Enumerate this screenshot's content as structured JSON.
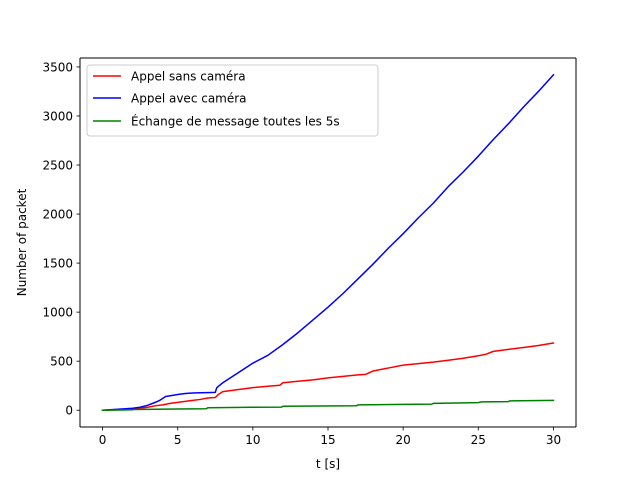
{
  "chart_data": {
    "type": "line",
    "title": "",
    "xlabel": "t [s]",
    "ylabel": "Number of packet",
    "xlim": [
      -1.5,
      31.5
    ],
    "ylim": [
      -171,
      3591
    ],
    "xticks": [
      0,
      5,
      10,
      15,
      20,
      25,
      30
    ],
    "yticks": [
      0,
      500,
      1000,
      1500,
      2000,
      2500,
      3000,
      3500
    ],
    "grid": false,
    "legend_position": "top-left",
    "series": [
      {
        "name": "Appel sans caméra",
        "color": "#ff0000",
        "x": [
          0,
          1,
          2,
          2.5,
          3,
          3.5,
          4,
          4.5,
          5,
          5.5,
          6,
          6.5,
          7,
          7.5,
          7.7,
          8,
          9,
          10,
          11,
          11.8,
          12,
          13,
          14,
          15,
          16,
          17,
          17.5,
          18,
          19,
          20,
          21,
          22,
          23,
          24,
          25,
          25.5,
          26,
          27,
          28,
          29,
          30
        ],
        "y": [
          0,
          5,
          10,
          20,
          30,
          45,
          55,
          70,
          80,
          90,
          100,
          110,
          125,
          130,
          160,
          190,
          210,
          230,
          245,
          255,
          280,
          295,
          310,
          330,
          345,
          360,
          365,
          400,
          430,
          460,
          475,
          490,
          510,
          530,
          555,
          570,
          600,
          620,
          640,
          660,
          685
        ]
      },
      {
        "name": "Appel avec caméra",
        "color": "#0000ff",
        "x": [
          0,
          1,
          2,
          2.5,
          3,
          3.5,
          3.8,
          4.2,
          5,
          5.5,
          6,
          6.5,
          7,
          7.5,
          7.6,
          8,
          9,
          10,
          11,
          12,
          13,
          14,
          15,
          16,
          17,
          18,
          19,
          20,
          21,
          22,
          23,
          24,
          25,
          26,
          27,
          28,
          29,
          30
        ],
        "y": [
          0,
          10,
          20,
          30,
          50,
          80,
          100,
          140,
          160,
          170,
          175,
          178,
          180,
          182,
          230,
          280,
          380,
          480,
          560,
          670,
          790,
          920,
          1050,
          1190,
          1340,
          1490,
          1650,
          1800,
          1960,
          2110,
          2280,
          2430,
          2590,
          2760,
          2920,
          3090,
          3250,
          3420
        ]
      },
      {
        "name": "Échange de message toutes les 5s",
        "color": "#008000",
        "x": [
          0,
          2,
          2.1,
          5,
          6.9,
          7,
          10,
          11.9,
          12,
          16.9,
          17,
          20,
          21.9,
          22,
          25,
          25.2,
          27,
          27.1,
          30
        ],
        "y": [
          0,
          5,
          8,
          12,
          15,
          25,
          30,
          32,
          40,
          45,
          55,
          60,
          62,
          70,
          78,
          85,
          88,
          95,
          100
        ]
      }
    ]
  }
}
